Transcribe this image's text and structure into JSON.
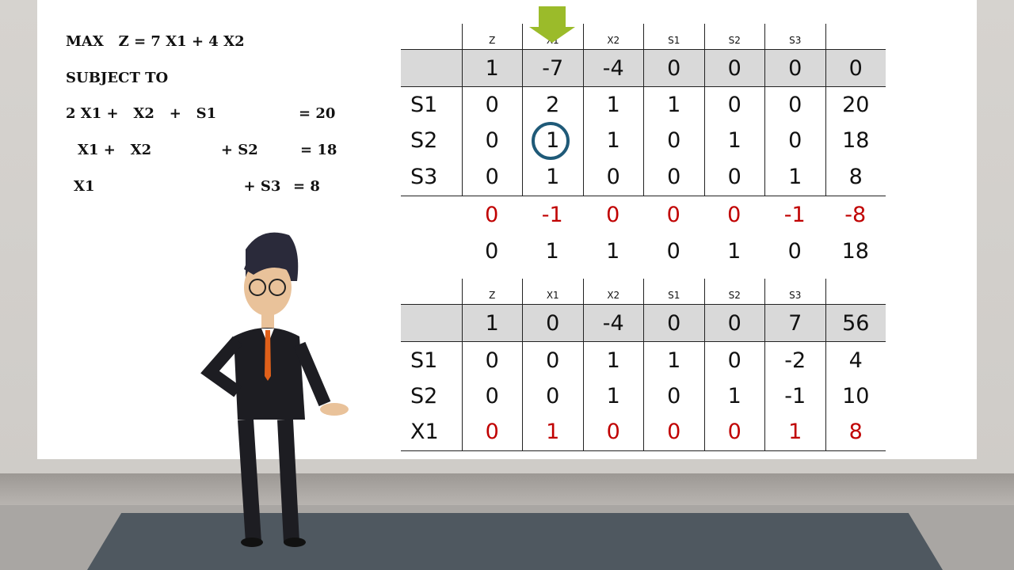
{
  "problem": {
    "objective": "MAX   Z = 7 X1 + 4 X2",
    "subject_to": "SUBJECT TO",
    "constraints": [
      {
        "lhs": "2 X1 +   X2   +   S1",
        "rhs": "= 20"
      },
      {
        "lhs": "X1 +   X2              + S2",
        "rhs": "= 18"
      },
      {
        "lhs": "X1                              + S3",
        "rhs": "= 8"
      }
    ]
  },
  "tableau1": {
    "headers": [
      "",
      "Z",
      "X1",
      "X2",
      "S1",
      "S2",
      "S3",
      ""
    ],
    "z_row": [
      "",
      "1",
      "-7",
      "-4",
      "0",
      "0",
      "0",
      "0"
    ],
    "rows": [
      [
        "S1",
        "0",
        "2",
        "1",
        "1",
        "0",
        "0",
        "20"
      ],
      [
        "S2",
        "0",
        "1",
        "1",
        "0",
        "1",
        "0",
        "18"
      ],
      [
        "S3",
        "0",
        "1",
        "0",
        "0",
        "0",
        "1",
        "8"
      ]
    ],
    "calc_rows": [
      {
        "values": [
          "",
          "0",
          "-1",
          "0",
          "0",
          "0",
          "-1",
          "-8"
        ],
        "color": "#c00000"
      },
      {
        "values": [
          "",
          "0",
          "1",
          "1",
          "0",
          "1",
          "0",
          "18"
        ],
        "color": "#111111"
      }
    ],
    "pivot_column": "X1",
    "pivot_element": {
      "row": "S2",
      "column": "X1",
      "value": "1"
    }
  },
  "tableau2": {
    "headers": [
      "",
      "Z",
      "X1",
      "X2",
      "S1",
      "S2",
      "S3",
      ""
    ],
    "z_row": [
      "",
      "1",
      "0",
      "-4",
      "0",
      "0",
      "7",
      "56"
    ],
    "rows": [
      [
        "S1",
        "0",
        "0",
        "1",
        "1",
        "0",
        "-2",
        "4"
      ],
      [
        "S2",
        "0",
        "0",
        "1",
        "0",
        "1",
        "-1",
        "10"
      ],
      [
        "X1",
        "0",
        "1",
        "0",
        "0",
        "0",
        "1",
        "8"
      ]
    ],
    "highlight_row": "X1"
  },
  "colors": {
    "arrow": "#9bbb2a",
    "pivot_circle": "#1f5a78",
    "highlight": "#c00000",
    "header_fill": "#d9d9d9"
  }
}
